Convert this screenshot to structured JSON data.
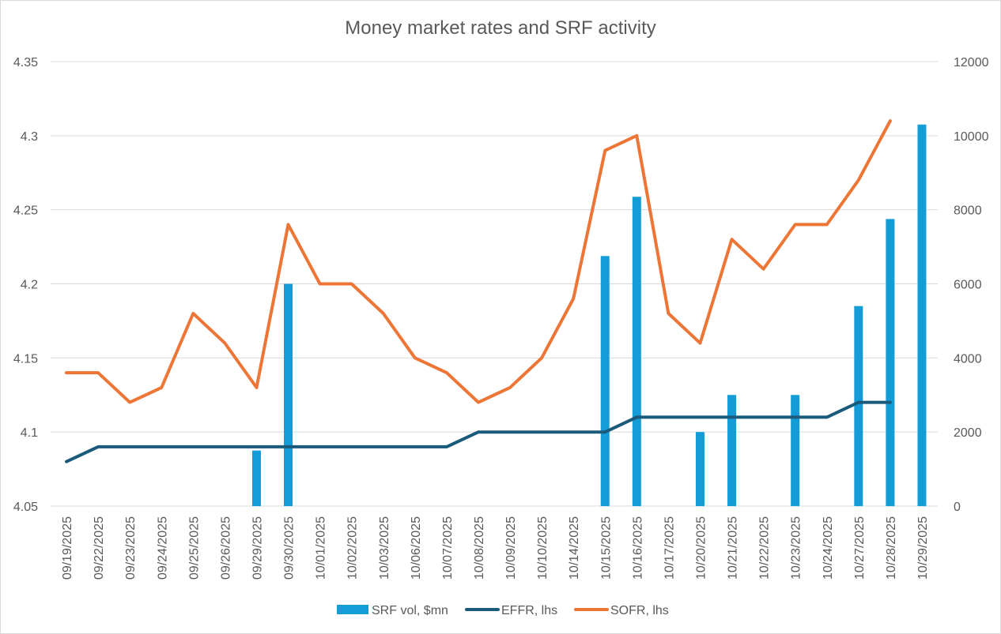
{
  "chart_data": {
    "type": "bar+line",
    "title": "Money market rates and SRF activity",
    "categories": [
      "09/19/2025",
      "09/22/2025",
      "09/23/2025",
      "09/24/2025",
      "09/25/2025",
      "09/26/2025",
      "09/29/2025",
      "09/30/2025",
      "10/01/2025",
      "10/02/2025",
      "10/03/2025",
      "10/06/2025",
      "10/07/2025",
      "10/08/2025",
      "10/09/2025",
      "10/10/2025",
      "10/14/2025",
      "10/15/2025",
      "10/16/2025",
      "10/17/2025",
      "10/20/2025",
      "10/21/2025",
      "10/22/2025",
      "10/23/2025",
      "10/24/2025",
      "10/27/2025",
      "10/28/2025",
      "10/29/2025"
    ],
    "left_axis": {
      "ylim": [
        4.05,
        4.35
      ],
      "ticks": [
        "4.05",
        "4.1",
        "4.15",
        "4.2",
        "4.25",
        "4.3",
        "4.35"
      ]
    },
    "right_axis": {
      "ylim": [
        0,
        12000
      ],
      "ticks": [
        "0",
        "2000",
        "4000",
        "6000",
        "8000",
        "10000",
        "12000"
      ]
    },
    "gridlines": true,
    "legend_position": "bottom",
    "series": [
      {
        "name": "SRF vol, $mn",
        "type": "bar",
        "axis": "right",
        "color": "#149cd6",
        "values": [
          0,
          0,
          0,
          0,
          0,
          0,
          1500,
          6000,
          0,
          0,
          0,
          0,
          0,
          0,
          0,
          0,
          0,
          6750,
          8350,
          0,
          2000,
          3000,
          0,
          3000,
          0,
          5400,
          7750,
          10300
        ]
      },
      {
        "name": "EFFR, lhs",
        "type": "line",
        "axis": "left",
        "color": "#1a5a7a",
        "values": [
          4.08,
          4.09,
          4.09,
          4.09,
          4.09,
          4.09,
          4.09,
          4.09,
          4.09,
          4.09,
          4.09,
          4.09,
          4.09,
          4.1,
          4.1,
          4.1,
          4.1,
          4.1,
          4.11,
          4.11,
          4.11,
          4.11,
          4.11,
          4.11,
          4.11,
          4.12,
          4.12,
          null
        ]
      },
      {
        "name": "SOFR, lhs",
        "type": "line",
        "axis": "left",
        "color": "#ed7535",
        "values": [
          4.14,
          4.14,
          4.12,
          4.13,
          4.18,
          4.16,
          4.13,
          4.24,
          4.2,
          4.2,
          4.18,
          4.15,
          4.14,
          4.12,
          4.13,
          4.15,
          4.19,
          4.29,
          4.3,
          4.18,
          4.16,
          4.23,
          4.21,
          4.24,
          4.24,
          4.27,
          4.31,
          null
        ]
      }
    ]
  }
}
